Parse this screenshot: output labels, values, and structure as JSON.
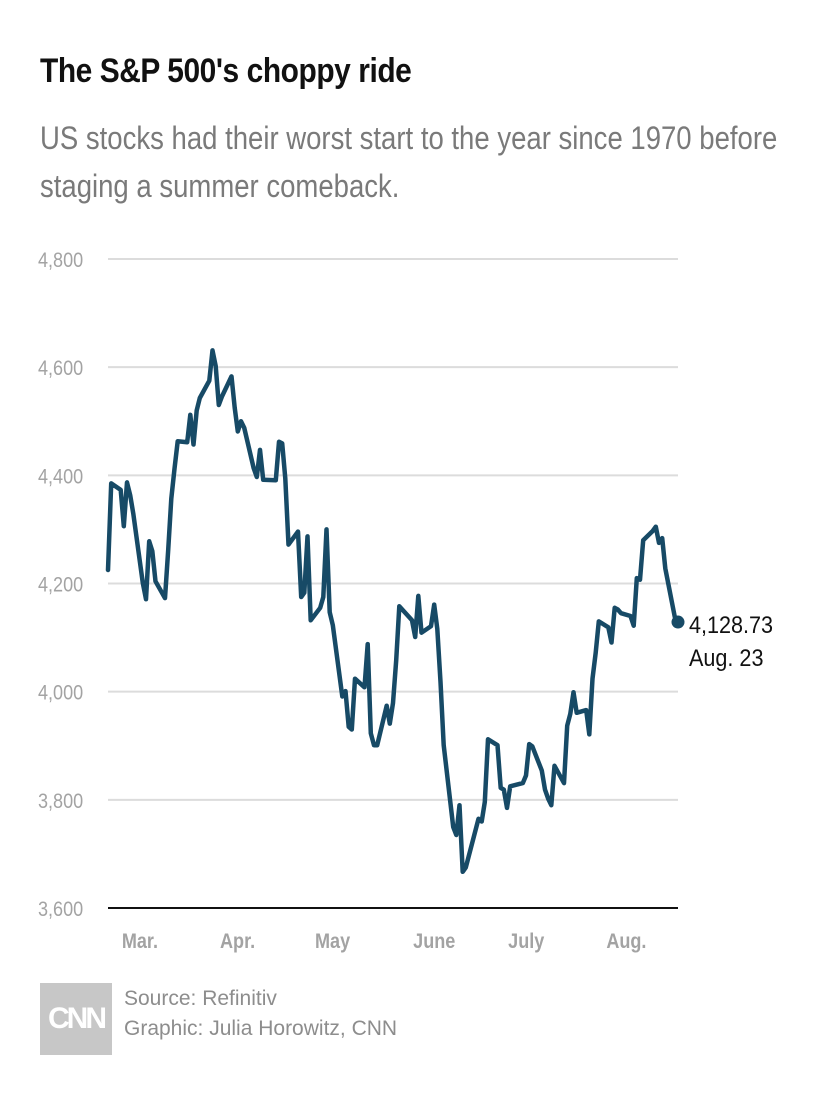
{
  "chart_data": {
    "type": "line",
    "title": "The S&P 500's choppy ride",
    "subtitle": "US stocks had their worst start to the year since 1970 before staging a summer comeback.",
    "xlabel": "",
    "ylabel": "",
    "ylim": [
      3600,
      4800
    ],
    "yticks": [
      4800,
      4600,
      4400,
      4200,
      4000,
      3800,
      3600
    ],
    "ytick_labels": [
      "4,800",
      "4,600",
      "4,400",
      "4,200",
      "4,000",
      "3,800",
      "3,600"
    ],
    "xlim": [
      "2022-02-24",
      "2022-08-23"
    ],
    "xticks": [
      {
        "label": "Mar.",
        "date": "2022-03-01"
      },
      {
        "label": "Apr.",
        "date": "2022-04-01"
      },
      {
        "label": "May",
        "date": "2022-05-01"
      },
      {
        "label": "June",
        "date": "2022-06-01"
      },
      {
        "label": "July",
        "date": "2022-07-01"
      },
      {
        "label": "Aug.",
        "date": "2022-08-01"
      }
    ],
    "grid": true,
    "line_color": "#174a66",
    "series": [
      {
        "points": [
          [
            "2022-02-24",
            4225
          ],
          [
            "2022-02-25",
            4385
          ],
          [
            "2022-02-28",
            4373
          ],
          [
            "2022-03-01",
            4306
          ],
          [
            "2022-03-02",
            4387
          ],
          [
            "2022-03-03",
            4363
          ],
          [
            "2022-03-04",
            4329
          ],
          [
            "2022-03-07",
            4201
          ],
          [
            "2022-03-08",
            4171
          ],
          [
            "2022-03-09",
            4278
          ],
          [
            "2022-03-10",
            4260
          ],
          [
            "2022-03-11",
            4204
          ],
          [
            "2022-03-14",
            4173
          ],
          [
            "2022-03-15",
            4262
          ],
          [
            "2022-03-16",
            4357
          ],
          [
            "2022-03-17",
            4412
          ],
          [
            "2022-03-18",
            4463
          ],
          [
            "2022-03-21",
            4461
          ],
          [
            "2022-03-22",
            4512
          ],
          [
            "2022-03-23",
            4457
          ],
          [
            "2022-03-24",
            4520
          ],
          [
            "2022-03-25",
            4543
          ],
          [
            "2022-03-28",
            4575
          ],
          [
            "2022-03-29",
            4631
          ],
          [
            "2022-03-30",
            4602
          ],
          [
            "2022-03-31",
            4530
          ],
          [
            "2022-04-01",
            4546
          ],
          [
            "2022-04-04",
            4583
          ],
          [
            "2022-04-05",
            4525
          ],
          [
            "2022-04-06",
            4481
          ],
          [
            "2022-04-07",
            4500
          ],
          [
            "2022-04-08",
            4488
          ],
          [
            "2022-04-11",
            4413
          ],
          [
            "2022-04-12",
            4397
          ],
          [
            "2022-04-13",
            4447
          ],
          [
            "2022-04-14",
            4392
          ],
          [
            "2022-04-18",
            4391
          ],
          [
            "2022-04-19",
            4462
          ],
          [
            "2022-04-20",
            4459
          ],
          [
            "2022-04-21",
            4394
          ],
          [
            "2022-04-22",
            4272
          ],
          [
            "2022-04-25",
            4296
          ],
          [
            "2022-04-26",
            4175
          ],
          [
            "2022-04-27",
            4183
          ],
          [
            "2022-04-28",
            4287
          ],
          [
            "2022-04-29",
            4132
          ],
          [
            "2022-05-02",
            4155
          ],
          [
            "2022-05-03",
            4175
          ],
          [
            "2022-05-04",
            4300
          ],
          [
            "2022-05-05",
            4147
          ],
          [
            "2022-05-06",
            4123
          ],
          [
            "2022-05-09",
            3991
          ],
          [
            "2022-05-10",
            4001
          ],
          [
            "2022-05-11",
            3935
          ],
          [
            "2022-05-12",
            3930
          ],
          [
            "2022-05-13",
            4024
          ],
          [
            "2022-05-16",
            4008
          ],
          [
            "2022-05-17",
            4088
          ],
          [
            "2022-05-18",
            3923
          ],
          [
            "2022-05-19",
            3901
          ],
          [
            "2022-05-20",
            3901
          ],
          [
            "2022-05-23",
            3974
          ],
          [
            "2022-05-24",
            3941
          ],
          [
            "2022-05-25",
            3979
          ],
          [
            "2022-05-26",
            4058
          ],
          [
            "2022-05-27",
            4158
          ],
          [
            "2022-05-31",
            4132
          ],
          [
            "2022-06-01",
            4101
          ],
          [
            "2022-06-02",
            4177
          ],
          [
            "2022-06-03",
            4109
          ],
          [
            "2022-06-06",
            4121
          ],
          [
            "2022-06-07",
            4161
          ],
          [
            "2022-06-08",
            4116
          ],
          [
            "2022-06-09",
            4018
          ],
          [
            "2022-06-10",
            3901
          ],
          [
            "2022-06-13",
            3750
          ],
          [
            "2022-06-14",
            3735
          ],
          [
            "2022-06-15",
            3790
          ],
          [
            "2022-06-16",
            3667
          ],
          [
            "2022-06-17",
            3675
          ],
          [
            "2022-06-21",
            3765
          ],
          [
            "2022-06-22",
            3760
          ],
          [
            "2022-06-23",
            3796
          ],
          [
            "2022-06-24",
            3912
          ],
          [
            "2022-06-27",
            3901
          ],
          [
            "2022-06-28",
            3822
          ],
          [
            "2022-06-29",
            3819
          ],
          [
            "2022-06-30",
            3785
          ],
          [
            "2022-07-01",
            3825
          ],
          [
            "2022-07-05",
            3831
          ],
          [
            "2022-07-06",
            3845
          ],
          [
            "2022-07-07",
            3903
          ],
          [
            "2022-07-08",
            3899
          ],
          [
            "2022-07-11",
            3854
          ],
          [
            "2022-07-12",
            3819
          ],
          [
            "2022-07-13",
            3802
          ],
          [
            "2022-07-14",
            3790
          ],
          [
            "2022-07-15",
            3863
          ],
          [
            "2022-07-18",
            3831
          ],
          [
            "2022-07-19",
            3937
          ],
          [
            "2022-07-20",
            3959
          ],
          [
            "2022-07-21",
            3999
          ],
          [
            "2022-07-22",
            3961
          ],
          [
            "2022-07-25",
            3966
          ],
          [
            "2022-07-26",
            3921
          ],
          [
            "2022-07-27",
            4024
          ],
          [
            "2022-07-28",
            4072
          ],
          [
            "2022-07-29",
            4130
          ],
          [
            "2022-08-01",
            4119
          ],
          [
            "2022-08-02",
            4091
          ],
          [
            "2022-08-03",
            4155
          ],
          [
            "2022-08-04",
            4152
          ],
          [
            "2022-08-05",
            4145
          ],
          [
            "2022-08-08",
            4140
          ],
          [
            "2022-08-09",
            4122
          ],
          [
            "2022-08-10",
            4210
          ],
          [
            "2022-08-11",
            4207
          ],
          [
            "2022-08-12",
            4280
          ],
          [
            "2022-08-15",
            4297
          ],
          [
            "2022-08-16",
            4305
          ],
          [
            "2022-08-17",
            4275
          ],
          [
            "2022-08-18",
            4284
          ],
          [
            "2022-08-19",
            4228
          ],
          [
            "2022-08-22",
            4138
          ],
          [
            "2022-08-23",
            4128.73
          ]
        ]
      }
    ],
    "annotations": [
      {
        "value": "4,128.73",
        "date_label": "Aug. 23"
      }
    ]
  },
  "footer": {
    "logo": "CNN",
    "source": "Source: Refinitiv",
    "credit": "Graphic: Julia Horowitz, CNN"
  }
}
